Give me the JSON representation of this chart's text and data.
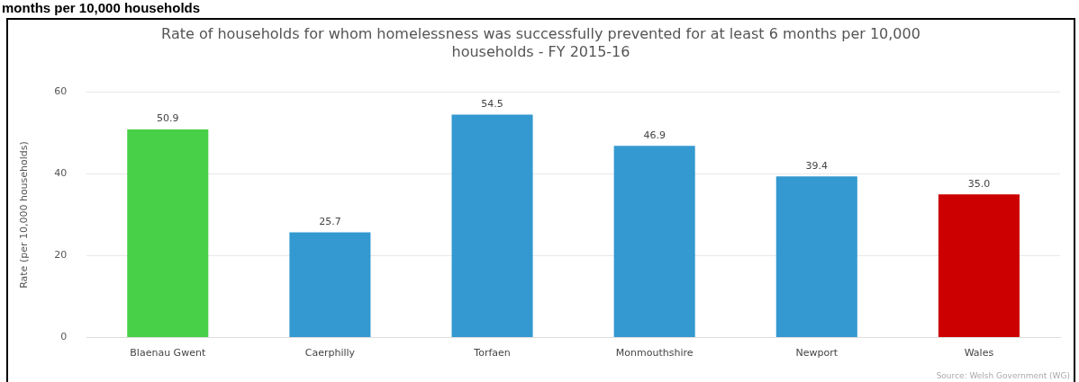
{
  "chart_data": {
    "type": "bar",
    "title": "Rate of households for whom homelessness was successfully prevented for at least 6 months per 10,000 households - FY 2015-16",
    "ylabel": "Rate (per 10,000 households)",
    "categories": [
      "Blaenau Gwent",
      "Caerphilly",
      "Torfaen",
      "Monmouthshire",
      "Newport",
      "Wales"
    ],
    "values": [
      50.9,
      25.7,
      54.5,
      46.9,
      39.4,
      35.0
    ],
    "value_labels": [
      "50.9",
      "25.7",
      "54.5",
      "46.9",
      "39.4",
      "35.0"
    ],
    "colors": [
      "#48d048",
      "#3399d0",
      "#3399d0",
      "#3399d0",
      "#3399d0",
      "#cc0000"
    ],
    "ylim": [
      0,
      60
    ],
    "yticks": [
      0,
      20,
      40,
      60
    ],
    "grid": "y",
    "legend": false,
    "annotations": [
      "months per 10,000 households",
      "Source: Welsh Government (WG)"
    ]
  }
}
